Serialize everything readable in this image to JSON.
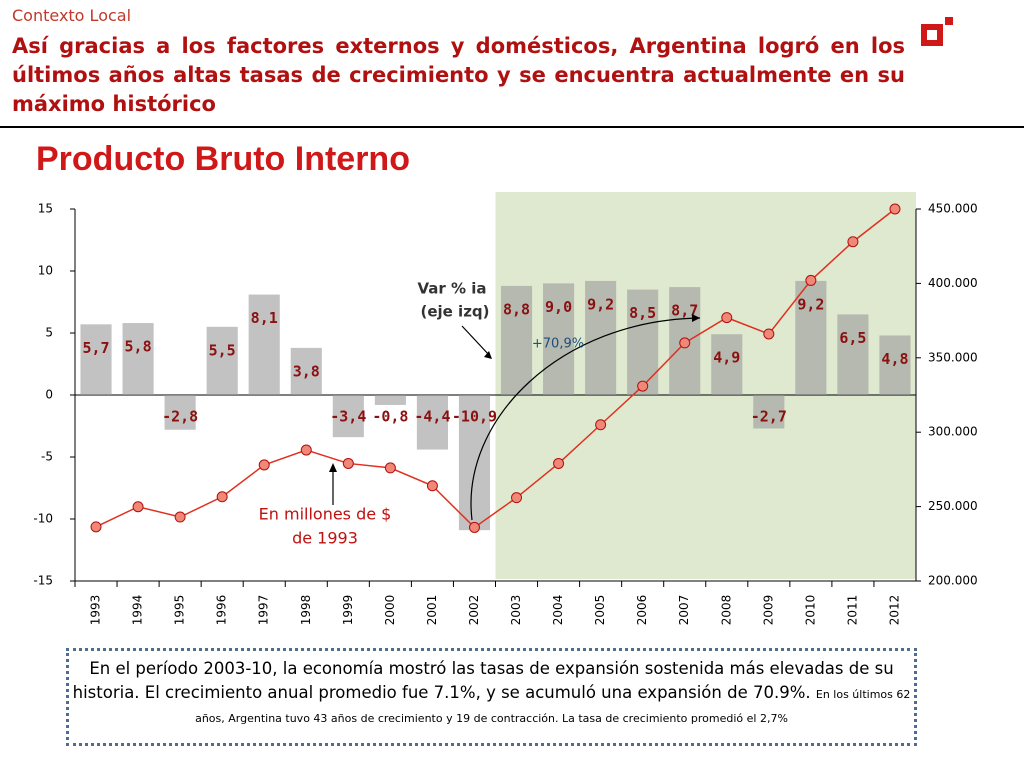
{
  "header": {
    "section": "Contexto Local",
    "headline": "Así gracias a los factores externos y domésticos, Argentina logró en los últimos años altas tasas de crecimiento y se encuentra actualmente en su máximo histórico"
  },
  "chart_data": {
    "type": "combo",
    "title": "Producto Bruto Interno",
    "categories": [
      "1993",
      "1994",
      "1995",
      "1996",
      "1997",
      "1998",
      "1999",
      "2000",
      "2001",
      "2002",
      "2003",
      "2004",
      "2005",
      "2006",
      "2007",
      "2008",
      "2009",
      "2010",
      "2011",
      "2012"
    ],
    "series": [
      {
        "name": "Var % ia",
        "type": "bar",
        "color": "#999999",
        "values": [
          5.7,
          5.8,
          -2.8,
          5.5,
          8.1,
          3.8,
          -3.4,
          -0.8,
          -4.4,
          -10.9,
          8.8,
          9.0,
          9.2,
          8.5,
          8.7,
          4.9,
          -2.7,
          9.2,
          6.5,
          4.8
        ],
        "value_labels": [
          "5,7",
          "5,8",
          "-2,8",
          "5,5",
          "8,1",
          "3,8",
          "-3,4",
          "-0,8",
          "-4,4",
          "-10,9",
          "8,8",
          "9,0",
          "9,2",
          "8,5",
          "8,7",
          "4,9",
          "-2,7",
          "9,2",
          "6,5",
          "4,8"
        ]
      },
      {
        "name": "PBI",
        "type": "line",
        "axis": "y2",
        "color": "#e03020",
        "values": [
          236400,
          249900,
          243000,
          256600,
          278000,
          288000,
          279000,
          276000,
          264000,
          236000,
          256000,
          279000,
          305000,
          331000,
          360000,
          377000,
          366000,
          402000,
          428000,
          450000
        ]
      }
    ],
    "ylim": [
      -15,
      15
    ],
    "yticks": [
      15,
      10,
      5,
      0,
      -5,
      -10,
      -15
    ],
    "y2lim": [
      200000,
      450000
    ],
    "y2ticks": [
      {
        "value": 450000,
        "label": "450.000"
      },
      {
        "value": 400000,
        "label": "400.000"
      },
      {
        "value": 350000,
        "label": "350.000"
      },
      {
        "value": 300000,
        "label": "300.000"
      },
      {
        "value": 250000,
        "label": "250.000"
      },
      {
        "value": 200000,
        "label": "200.000"
      }
    ],
    "annotations": [
      "Var % ia",
      "(eje izq)",
      "+70,9%",
      "En millones de $",
      "de 1993"
    ]
  },
  "note": {
    "main": "En el período 2003-10, la economía mostró las tasas de expansión sostenida más elevadas de su historia. El crecimiento anual promedio fue 7.1%, y se acumuló una expansión de 70.9%.",
    "small": "En los últimos 62 años, Argentina tuvo 43 años de crecimiento y 19 de contracción. La tasa de crecimiento promedió el 2,7%"
  }
}
